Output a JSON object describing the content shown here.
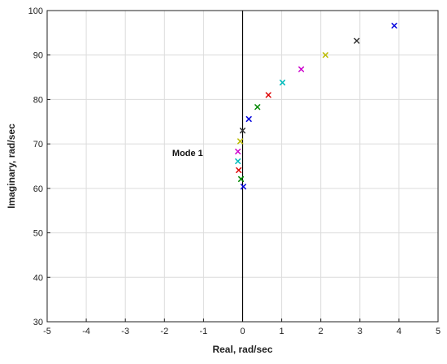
{
  "chart_data": {
    "type": "scatter",
    "xlabel": "Real, rad/sec",
    "ylabel": "Imaginary, rad/sec",
    "xlim": [
      -5,
      5
    ],
    "ylim": [
      30,
      100
    ],
    "xticks": [
      -5,
      -4,
      -3,
      -2,
      -1,
      0,
      1,
      2,
      3,
      4,
      5
    ],
    "yticks": [
      30,
      40,
      50,
      60,
      70,
      80,
      90,
      100
    ],
    "grid": true,
    "marker": "x",
    "vertical_reference_line_x": 0,
    "annotations": [
      {
        "text": "Mode 1",
        "x": -1.8,
        "y": 68
      }
    ],
    "points": [
      {
        "x": 0.02,
        "y": 60.4,
        "color": "#0000dd"
      },
      {
        "x": -0.04,
        "y": 62.1,
        "color": "#008800"
      },
      {
        "x": -0.1,
        "y": 64.1,
        "color": "#dd0000"
      },
      {
        "x": -0.12,
        "y": 66.1,
        "color": "#00bbbb"
      },
      {
        "x": -0.12,
        "y": 68.3,
        "color": "#cc00cc"
      },
      {
        "x": -0.06,
        "y": 70.6,
        "color": "#bbbb00"
      },
      {
        "x": 0.0,
        "y": 73.0,
        "color": "#333333"
      },
      {
        "x": 0.16,
        "y": 75.6,
        "color": "#0000dd"
      },
      {
        "x": 0.38,
        "y": 78.3,
        "color": "#008800"
      },
      {
        "x": 0.66,
        "y": 81.0,
        "color": "#dd0000"
      },
      {
        "x": 1.02,
        "y": 83.8,
        "color": "#00bbbb"
      },
      {
        "x": 1.5,
        "y": 86.8,
        "color": "#cc00cc"
      },
      {
        "x": 2.12,
        "y": 90.0,
        "color": "#bbbb00"
      },
      {
        "x": 2.92,
        "y": 93.2,
        "color": "#333333"
      },
      {
        "x": 3.88,
        "y": 96.6,
        "color": "#0000dd"
      }
    ]
  }
}
